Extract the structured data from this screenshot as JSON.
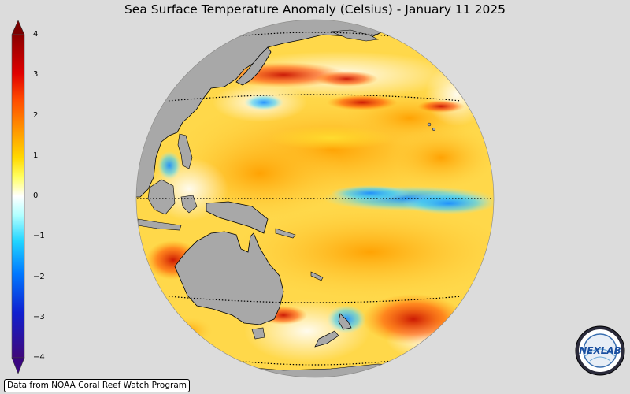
{
  "title": "Sea Surface Temperature Anomaly (Celsius) - January 11 2025",
  "colorbar": {
    "ticks": [
      "4",
      "3",
      "2",
      "1",
      "0",
      "−1",
      "−2",
      "−3",
      "−4"
    ],
    "colors": [
      "#5a0000",
      "#c40000",
      "#ff2a00",
      "#ff9000",
      "#ffd000",
      "#ffff3a",
      "#ffffff",
      "#8ffcff",
      "#00d4ff",
      "#0082ff",
      "#0032d8",
      "#3a0a8a"
    ]
  },
  "map": {
    "projection": "orthographic",
    "region": "Pacific Ocean",
    "ocean_anomaly_colors": {
      "warm": "#ffb020",
      "hot": "#e02010",
      "neutral": "#ffffff",
      "cool": "#30c0ff"
    },
    "land_color": "#a8a8a8"
  },
  "credit": "Data from NOAA Coral Reef Watch Program",
  "logo": {
    "text": "NEXLAB",
    "icon": "nexlab-logo-icon"
  }
}
